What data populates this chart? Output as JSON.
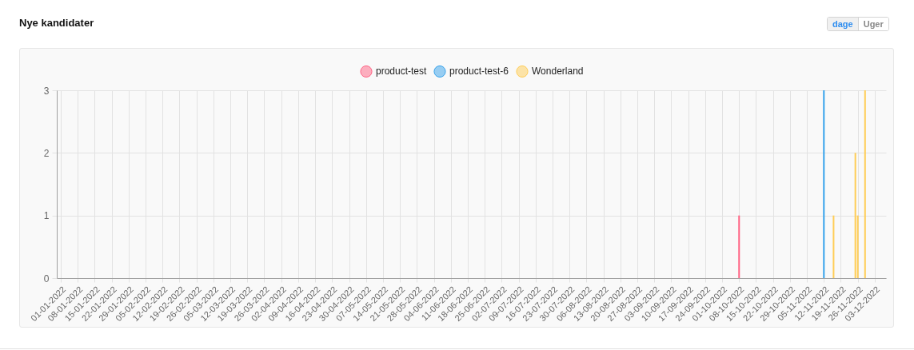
{
  "chart_data": {
    "type": "bar",
    "title": "Nye kandidater",
    "annotations": [
      "dage",
      "Uger"
    ],
    "series": [
      {
        "name": "product-test",
        "color": "#ff6384",
        "x": [
          "2022-10-08"
        ],
        "values": [
          1
        ]
      },
      {
        "name": "product-test-6",
        "color": "#36a2eb",
        "x": [
          "2022-11-12"
        ],
        "values": [
          3
        ]
      },
      {
        "name": "Wonderland",
        "color": "#ffcd56",
        "x": [
          "2022-11-16",
          "2022-11-25",
          "2022-11-26",
          "2022-11-29"
        ],
        "values": [
          1,
          2,
          1,
          3
        ]
      }
    ],
    "xlim": [
      "2022-01-01",
      "2022-12-06"
    ],
    "xticks": [
      {
        "value": "2022-01-01",
        "label": "01-01-2022"
      },
      {
        "value": "2022-01-08",
        "label": "08-01-2022"
      },
      {
        "value": "2022-01-15",
        "label": "15-01-2022"
      },
      {
        "value": "2022-01-22",
        "label": "22-01-2022"
      },
      {
        "value": "2022-01-29",
        "label": "29-01-2022"
      },
      {
        "value": "2022-02-05",
        "label": "05-02-2022"
      },
      {
        "value": "2022-02-12",
        "label": "12-02-2022"
      },
      {
        "value": "2022-02-19",
        "label": "19-02-2022"
      },
      {
        "value": "2022-02-26",
        "label": "26-02-2022"
      },
      {
        "value": "2022-03-05",
        "label": "05-03-2022"
      },
      {
        "value": "2022-03-12",
        "label": "12-03-2022"
      },
      {
        "value": "2022-03-19",
        "label": "19-03-2022"
      },
      {
        "value": "2022-03-26",
        "label": "26-03-2022"
      },
      {
        "value": "2022-04-02",
        "label": "02-04-2022"
      },
      {
        "value": "2022-04-09",
        "label": "09-04-2022"
      },
      {
        "value": "2022-04-16",
        "label": "16-04-2022"
      },
      {
        "value": "2022-04-23",
        "label": "23-04-2022"
      },
      {
        "value": "2022-04-30",
        "label": "30-04-2022"
      },
      {
        "value": "2022-05-07",
        "label": "07-05-2022"
      },
      {
        "value": "2022-05-14",
        "label": "14-05-2022"
      },
      {
        "value": "2022-05-21",
        "label": "21-05-2022"
      },
      {
        "value": "2022-05-28",
        "label": "28-05-2022"
      },
      {
        "value": "2022-06-04",
        "label": "04-06-2022"
      },
      {
        "value": "2022-06-11",
        "label": "11-06-2022"
      },
      {
        "value": "2022-06-18",
        "label": "18-06-2022"
      },
      {
        "value": "2022-06-25",
        "label": "25-06-2022"
      },
      {
        "value": "2022-07-02",
        "label": "02-07-2022"
      },
      {
        "value": "2022-07-09",
        "label": "09-07-2022"
      },
      {
        "value": "2022-07-16",
        "label": "16-07-2022"
      },
      {
        "value": "2022-07-23",
        "label": "23-07-2022"
      },
      {
        "value": "2022-07-30",
        "label": "30-07-2022"
      },
      {
        "value": "2022-08-06",
        "label": "06-08-2022"
      },
      {
        "value": "2022-08-13",
        "label": "13-08-2022"
      },
      {
        "value": "2022-08-20",
        "label": "20-08-2022"
      },
      {
        "value": "2022-08-27",
        "label": "27-08-2022"
      },
      {
        "value": "2022-09-03",
        "label": "03-09-2022"
      },
      {
        "value": "2022-09-10",
        "label": "10-09-2022"
      },
      {
        "value": "2022-09-17",
        "label": "17-09-2022"
      },
      {
        "value": "2022-09-24",
        "label": "24-09-2022"
      },
      {
        "value": "2022-10-01",
        "label": "01-10-2022"
      },
      {
        "value": "2022-10-08",
        "label": "08-10-2022"
      },
      {
        "value": "2022-10-15",
        "label": "15-10-2022"
      },
      {
        "value": "2022-10-22",
        "label": "22-10-2022"
      },
      {
        "value": "2022-10-29",
        "label": "29-10-2022"
      },
      {
        "value": "2022-11-05",
        "label": "05-11-2022"
      },
      {
        "value": "2022-11-12",
        "label": "12-11-2022"
      },
      {
        "value": "2022-11-19",
        "label": "19-11-2022"
      },
      {
        "value": "2022-11-26",
        "label": "26-11-2022"
      },
      {
        "value": "2022-12-03",
        "label": "03-12-2022"
      }
    ],
    "ylim": [
      0,
      3
    ],
    "yticks": [
      0,
      1,
      2,
      3
    ],
    "grid": true,
    "legend": "top"
  }
}
